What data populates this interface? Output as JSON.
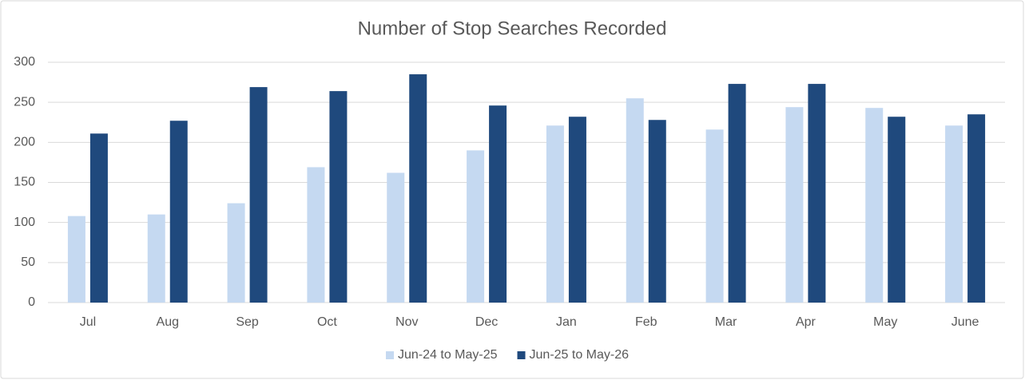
{
  "chart_data": {
    "type": "bar",
    "title": "Number of Stop Searches Recorded",
    "categories": [
      "Jul",
      "Aug",
      "Sep",
      "Oct",
      "Nov",
      "Dec",
      "Jan",
      "Feb",
      "Mar",
      "Apr",
      "May",
      "June"
    ],
    "series": [
      {
        "name": "Jun-24 to May-25",
        "color": "#c5d9f1",
        "values": [
          108,
          110,
          124,
          169,
          162,
          190,
          221,
          255,
          216,
          244,
          243,
          221
        ]
      },
      {
        "name": "Jun-25 to May-26",
        "color": "#1f497d",
        "values": [
          211,
          227,
          269,
          264,
          285,
          246,
          232,
          228,
          273,
          273,
          232,
          235
        ]
      }
    ],
    "ylim": [
      0,
      300
    ],
    "yticks": [
      0,
      50,
      100,
      150,
      200,
      250,
      300
    ],
    "grid": true,
    "legend": "bottom"
  }
}
